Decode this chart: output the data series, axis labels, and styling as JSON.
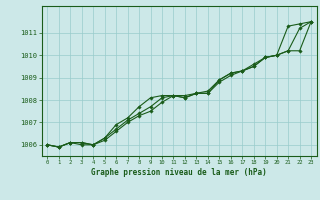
{
  "x": [
    0,
    1,
    2,
    3,
    4,
    5,
    6,
    7,
    8,
    9,
    10,
    11,
    12,
    13,
    14,
    15,
    16,
    17,
    18,
    19,
    20,
    21,
    22,
    23
  ],
  "line1": [
    1006.0,
    1005.9,
    1006.1,
    1006.1,
    1006.0,
    1006.2,
    1006.6,
    1007.0,
    1007.3,
    1007.5,
    1007.9,
    1008.2,
    1008.1,
    1008.3,
    1008.3,
    1008.8,
    1009.1,
    1009.3,
    1009.5,
    1009.9,
    1010.0,
    1010.2,
    1011.2,
    1011.5
  ],
  "line2": [
    1006.0,
    1005.9,
    1006.1,
    1006.0,
    1006.0,
    1006.3,
    1006.7,
    1007.1,
    1007.4,
    1007.7,
    1008.1,
    1008.2,
    1008.1,
    1008.3,
    1008.3,
    1008.9,
    1009.2,
    1009.3,
    1009.5,
    1009.9,
    1010.0,
    1010.2,
    1010.2,
    1011.5
  ],
  "line3": [
    1006.0,
    1005.9,
    1006.1,
    1006.1,
    1006.0,
    1006.3,
    1006.9,
    1007.2,
    1007.7,
    1008.1,
    1008.2,
    1008.2,
    1008.2,
    1008.3,
    1008.4,
    1008.9,
    1009.2,
    1009.3,
    1009.6,
    1009.9,
    1010.0,
    1011.3,
    1011.4,
    1011.5
  ],
  "bg_color": "#cce8e8",
  "line_color": "#1a5c1a",
  "grid_color": "#99cccc",
  "xlabel": "Graphe pression niveau de la mer (hPa)",
  "ylim_min": 1005.5,
  "ylim_max": 1012.2,
  "yticks": [
    1006,
    1007,
    1008,
    1009,
    1010,
    1011
  ],
  "xticks": [
    0,
    1,
    2,
    3,
    4,
    5,
    6,
    7,
    8,
    9,
    10,
    11,
    12,
    13,
    14,
    15,
    16,
    17,
    18,
    19,
    20,
    21,
    22,
    23
  ],
  "marker": "D",
  "markersize": 1.8,
  "linewidth": 0.8
}
